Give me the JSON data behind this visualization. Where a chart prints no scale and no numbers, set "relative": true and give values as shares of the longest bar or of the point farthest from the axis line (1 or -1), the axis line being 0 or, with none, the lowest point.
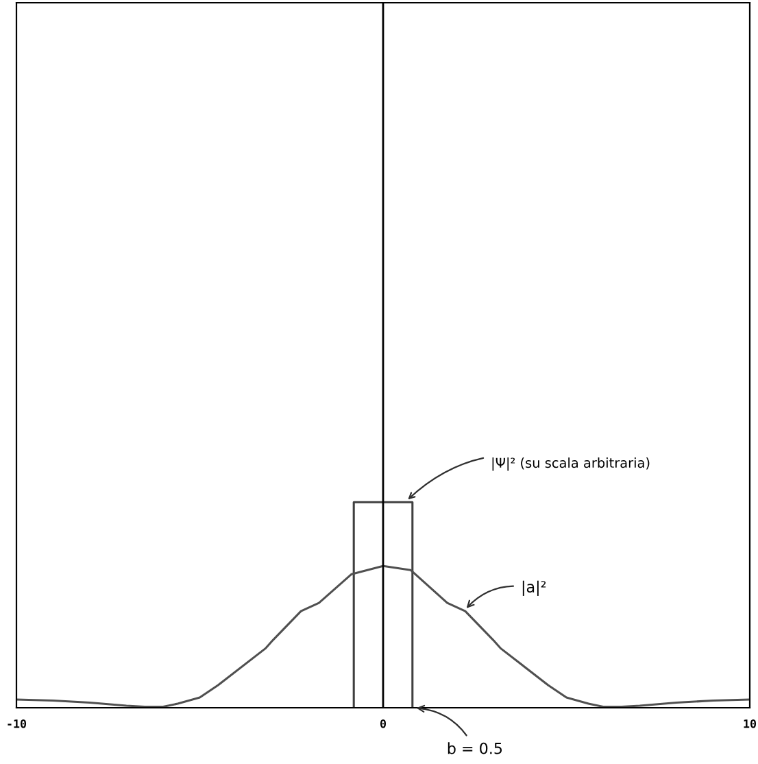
{
  "chart_data": {
    "type": "line",
    "relative": true,
    "xlim": [
      -10,
      10
    ],
    "xticks": [
      -10,
      0,
      10
    ],
    "tick_labels": "x",
    "grid": false,
    "series": [
      {
        "color": "#404040",
        "x": [
          -0.8,
          -0.8,
          0.8,
          0.8
        ],
        "values": [
          0,
          1,
          1,
          0
        ]
      },
      {
        "color": "#505050",
        "x": [
          -10,
          -9,
          -8,
          -7,
          -6.5,
          -6,
          -5.6,
          -5,
          -4.5,
          -3.2,
          -3,
          -2.24,
          -1.75,
          -0.86,
          0,
          0.75,
          1.75,
          2.24,
          3,
          3.2,
          4.5,
          5,
          5.6,
          6,
          6.5,
          7,
          8,
          9,
          10
        ],
        "values": [
          0.04,
          0.035,
          0.025,
          0.01,
          0.005,
          0.005,
          0.02,
          0.05,
          0.11,
          0.29,
          0.33,
          0.47,
          0.51,
          0.65,
          0.69,
          0.67,
          0.51,
          0.47,
          0.33,
          0.29,
          0.11,
          0.05,
          0.02,
          0.005,
          0.005,
          0.01,
          0.025,
          0.035,
          0.04
        ]
      }
    ],
    "ref_lines": [
      {
        "axis": "x",
        "value": 0,
        "color": "#000000"
      }
    ],
    "annotations": [
      {
        "text": "|Ψ|² (su scala arbitraria)",
        "x": 0.6,
        "y": 1
      },
      {
        "text": "|a|²",
        "x": 2.2,
        "y": 0.47
      },
      {
        "text": "b = 0.5",
        "x": 0.8,
        "y": 0
      }
    ]
  }
}
